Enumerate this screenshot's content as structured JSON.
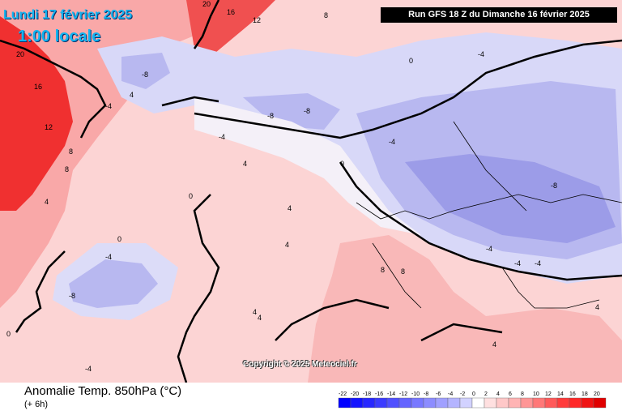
{
  "header": {
    "date": "Lundi 17 février 2025",
    "time": "1:00 locale",
    "run": "Run GFS 18 Z du Dimanche 16 février 2025"
  },
  "map": {
    "copyright": "Copyright © 2025 Meteociel.fr",
    "contour_labels": [
      "20",
      "16",
      "12",
      "8",
      "4",
      "0",
      "-4",
      "-8",
      "20",
      "16",
      "12",
      "8",
      "4",
      "0",
      "-4",
      "-8",
      "-4",
      "-8",
      "-4",
      "-8",
      "0",
      "4",
      "8",
      "4",
      "0",
      "4",
      "-4",
      "4",
      "8",
      "-4",
      "4",
      "-4",
      "4",
      "0",
      "4",
      "8",
      "-4",
      "-8",
      "-4"
    ]
  },
  "footer": {
    "title": "Anomalie Temp. 850hPa (°C)",
    "subtitle": "(+ 6h)"
  },
  "legend": {
    "labels": [
      "-22",
      "-20",
      "-18",
      "-16",
      "-14",
      "-12",
      "-10",
      "-8",
      "-6",
      "-4",
      "-2",
      "0",
      "2",
      "4",
      "6",
      "8",
      "10",
      "12",
      "14",
      "16",
      "18",
      "20"
    ],
    "colors": [
      "#0000ff",
      "#1414ff",
      "#2828ff",
      "#3c3cff",
      "#5050ff",
      "#6464ff",
      "#7878ff",
      "#8c8cff",
      "#a0a0ff",
      "#b4b4ff",
      "#d2d2ff",
      "#ffffff",
      "#ffe0e0",
      "#ffc8c8",
      "#ffb4b4",
      "#ff9696",
      "#ff7878",
      "#ff5a5a",
      "#ff3c3c",
      "#ff2828",
      "#f01414",
      "#e00000"
    ]
  },
  "colors": {
    "warm_strong": "#f02828",
    "warm": "#f79a9a",
    "warm_light": "#fcd4d4",
    "cold_light": "#dcdcfa",
    "cold": "#b4b4f0",
    "cold_strong": "#8c8ce6",
    "title": "#12b4f0"
  }
}
